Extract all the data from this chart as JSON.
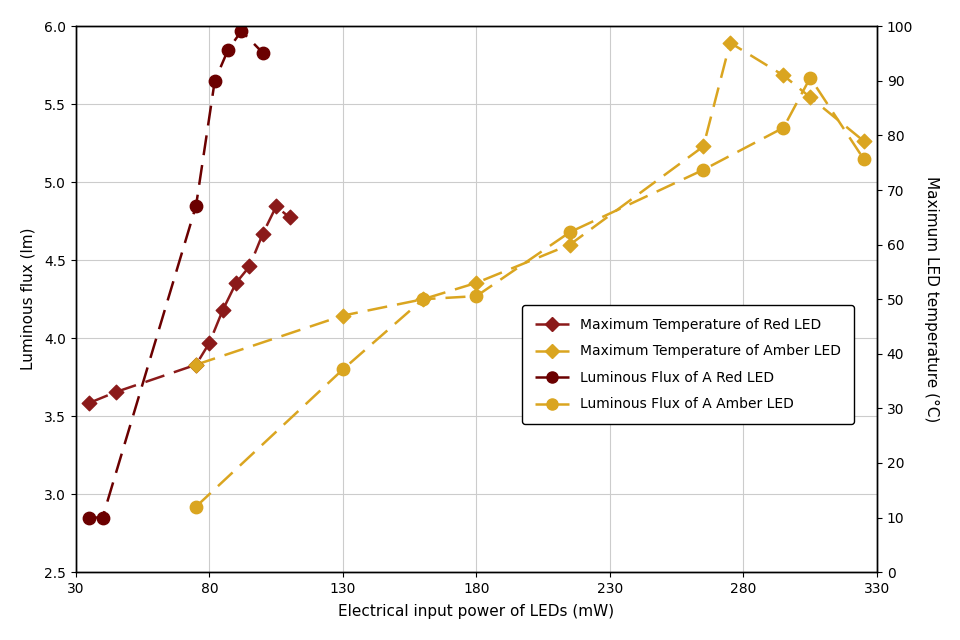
{
  "xlabel": "Electrical input power of LEDs (mW)",
  "ylabel_left": "Luminous flux (lm)",
  "ylabel_right": "Maximum LED temperature (°C)",
  "xlim": [
    30,
    330
  ],
  "ylim_left": [
    2.5,
    6.0
  ],
  "ylim_right": [
    0,
    100
  ],
  "xticks": [
    30,
    80,
    130,
    180,
    230,
    280,
    330
  ],
  "yticks_left": [
    2.5,
    3.0,
    3.5,
    4.0,
    4.5,
    5.0,
    5.5,
    6.0
  ],
  "yticks_right": [
    0,
    10,
    20,
    30,
    40,
    50,
    60,
    70,
    80,
    90,
    100
  ],
  "red_temp_pw": [
    35,
    45,
    75,
    80,
    85,
    90,
    95,
    100,
    105,
    110
  ],
  "red_temp_C": [
    31,
    33,
    38,
    42,
    48,
    53,
    56,
    62,
    67,
    65
  ],
  "amber_temp_pw": [
    75,
    130,
    160,
    180,
    215,
    265,
    275,
    295,
    305,
    325
  ],
  "amber_temp_C": [
    38,
    47,
    50,
    53,
    60,
    78,
    97,
    91,
    87,
    79
  ],
  "red_flux_pw": [
    35,
    40,
    75,
    82,
    87,
    92,
    100
  ],
  "red_flux_lm": [
    2.85,
    2.85,
    4.85,
    5.65,
    5.85,
    5.97,
    5.83
  ],
  "amber_flux_pw": [
    75,
    130,
    160,
    180,
    215,
    265,
    295,
    305,
    325
  ],
  "amber_flux_lm": [
    2.92,
    3.8,
    4.25,
    4.27,
    4.68,
    5.08,
    5.35,
    5.67,
    5.15
  ],
  "red_color": "#8B1A1A",
  "amber_color": "#DAA520",
  "red_dark_color": "#6B0000",
  "background_color": "#FFFFFF",
  "grid_color": "#CCCCCC"
}
